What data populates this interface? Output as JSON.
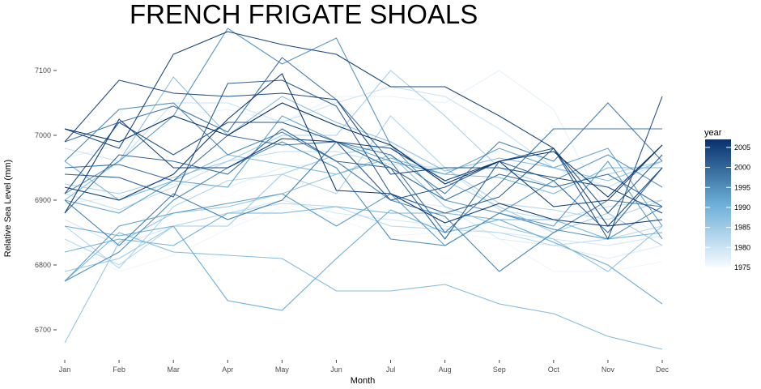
{
  "chart_data": {
    "type": "line",
    "title": "FRENCH FRIGATE SHOALS",
    "xlabel": "Month",
    "ylabel": "Relative Sea Level (mm)",
    "categories": [
      "Jan",
      "Feb",
      "Mar",
      "Apr",
      "May",
      "Jun",
      "Jul",
      "Aug",
      "Sep",
      "Oct",
      "Nov",
      "Dec"
    ],
    "yticks": [
      6700,
      6800,
      6900,
      7000,
      7100
    ],
    "ylim": [
      6665,
      7165
    ],
    "grid": false,
    "legend": {
      "title": "year",
      "position": "right",
      "labels": [
        1975,
        1980,
        1985,
        1990,
        1995,
        2000,
        2005
      ],
      "range": [
        1975,
        2007
      ],
      "color_low": "#f7fbff",
      "color_high": "#08306b"
    },
    "series": [
      {
        "year": 1975,
        "values": [
          6945,
          6870,
          6920,
          6905,
          6960,
          6935,
          6890,
          6880,
          6870,
          6845,
          6835,
          6815
        ]
      },
      {
        "year": 1976,
        "values": [
          6835,
          6790,
          6815,
          6855,
          6890,
          6870,
          6845,
          6850,
          6840,
          6790,
          6790,
          6805
        ]
      },
      {
        "year": 1977,
        "values": [
          6965,
          6985,
          7030,
          7040,
          7020,
          7060,
          7060,
          7050,
          7100,
          7040,
          6880,
          6850
        ]
      },
      {
        "year": 1978,
        "values": [
          6895,
          6905,
          6925,
          6920,
          6950,
          6960,
          6900,
          6890,
          6840,
          6830,
          6810,
          6830
        ]
      },
      {
        "year": 1979,
        "values": [
          6870,
          6830,
          6860,
          6880,
          6900,
          6880,
          6870,
          6860,
          6850,
          6840,
          6830,
          6845
        ]
      },
      {
        "year": 1980,
        "values": [
          6980,
          6960,
          7050,
          7050,
          7020,
          7050,
          7075,
          7060,
          7010,
          6950,
          6920,
          6960
        ]
      },
      {
        "year": 1981,
        "values": [
          6910,
          6885,
          6920,
          6960,
          6975,
          6975,
          6955,
          6950,
          6885,
          6870,
          6890,
          6900
        ]
      },
      {
        "year": 1982,
        "values": [
          6840,
          6800,
          6860,
          6880,
          6895,
          6890,
          6860,
          6855,
          6850,
          6830,
          6840,
          6860
        ]
      },
      {
        "year": 1983,
        "values": [
          6860,
          6795,
          6890,
          6930,
          6940,
          6910,
          7030,
          6950,
          6895,
          6885,
          6870,
          6900
        ]
      },
      {
        "year": 1984,
        "values": [
          6925,
          6910,
          6935,
          6960,
          7000,
          7000,
          7100,
          7030,
          6950,
          6920,
          6940,
          6960
        ]
      },
      {
        "year": 1985,
        "values": [
          6790,
          6810,
          6860,
          6860,
          6940,
          6970,
          6985,
          6930,
          6890,
          6850,
          6880,
          6830
        ]
      },
      {
        "year": 1986,
        "values": [
          6680,
          6835,
          6880,
          6890,
          6910,
          6940,
          6970,
          6890,
          6860,
          6840,
          6790,
          6860
        ]
      },
      {
        "year": 1987,
        "values": [
          6900,
          6960,
          7090,
          7000,
          7060,
          7020,
          6990,
          6945,
          6965,
          6950,
          6930,
          6960
        ]
      },
      {
        "year": 1988,
        "values": [
          6775,
          6850,
          6820,
          6815,
          6810,
          6760,
          6760,
          6770,
          6740,
          6725,
          6690,
          6670
        ]
      },
      {
        "year": 1989,
        "values": [
          6960,
          6900,
          6930,
          6970,
          6955,
          6940,
          6965,
          6940,
          6935,
          6910,
          6950,
          6950
        ]
      },
      {
        "year": 1990,
        "values": [
          6820,
          6840,
          6830,
          6880,
          6880,
          6890,
          6880,
          6880,
          6870,
          6870,
          6840,
          6850
        ]
      },
      {
        "year": 1991,
        "values": [
          6860,
          6845,
          6860,
          6745,
          6730,
          6810,
          6885,
          6850,
          6870,
          6835,
          6800,
          6740
        ]
      },
      {
        "year": 1992,
        "values": [
          6900,
          6880,
          6930,
          6920,
          7030,
          6990,
          6960,
          6940,
          6980,
          6950,
          6980,
          6860
        ]
      },
      {
        "year": 1993,
        "values": [
          6775,
          6860,
          6880,
          6895,
          6910,
          6860,
          6910,
          6830,
          6880,
          6860,
          6960,
          6840
        ]
      },
      {
        "year": 1994,
        "values": [
          6910,
          6960,
          7030,
          7165,
          7110,
          7150,
          6985,
          6900,
          6880,
          6930,
          6970,
          6920
        ]
      },
      {
        "year": 1995,
        "values": [
          6775,
          6820,
          6900,
          6950,
          6990,
          6950,
          6840,
          6830,
          6880,
          6855,
          6840,
          6890
        ]
      },
      {
        "year": 1996,
        "values": [
          6960,
          7040,
          7050,
          6970,
          7005,
          6960,
          6900,
          6875,
          6790,
          6850,
          6900,
          6890
        ]
      },
      {
        "year": 1997,
        "values": [
          6900,
          6830,
          6910,
          6870,
          6900,
          6990,
          6970,
          6910,
          6990,
          6960,
          7050,
          6960
        ]
      },
      {
        "year": 1998,
        "values": [
          6990,
          7020,
          7045,
          7005,
          7120,
          7055,
          6960,
          6850,
          6925,
          7010,
          7010,
          7010
        ]
      },
      {
        "year": 1999,
        "values": [
          6950,
          6955,
          6930,
          7000,
          6985,
          6990,
          6950,
          6900,
          6940,
          6920,
          6940,
          6890
        ]
      },
      {
        "year": 2000,
        "values": [
          6880,
          6970,
          6960,
          6940,
          7010,
          6960,
          6950,
          6840,
          6960,
          6930,
          6850,
          6950
        ]
      },
      {
        "year": 2001,
        "values": [
          6940,
          6935,
          6905,
          7080,
          7085,
          7045,
          6910,
          6880,
          6905,
          6980,
          6880,
          6970
        ]
      },
      {
        "year": 2002,
        "values": [
          6910,
          7020,
          6970,
          7020,
          7020,
          6990,
          6900,
          6920,
          6960,
          6980,
          6840,
          7060
        ]
      },
      {
        "year": 2003,
        "values": [
          6990,
          7085,
          7065,
          7060,
          7065,
          7055,
          6940,
          6950,
          6950,
          6935,
          6920,
          6880
        ]
      },
      {
        "year": 2004,
        "values": [
          7010,
          6980,
          7125,
          7160,
          7140,
          7125,
          7075,
          7075,
          7030,
          6980,
          6860,
          6950
        ]
      },
      {
        "year": 2005,
        "values": [
          6880,
          7025,
          6950,
          6950,
          6995,
          6990,
          6980,
          6930,
          6960,
          6890,
          6900,
          6985
        ]
      },
      {
        "year": 2006,
        "values": [
          6920,
          6900,
          6940,
          7025,
          7095,
          6915,
          6910,
          6865,
          6895,
          6870,
          6860,
          6870
        ]
      },
      {
        "year": 2007,
        "values": [
          7010,
          6990,
          7030,
          7000,
          7050,
          7015,
          6985,
          6925,
          6960,
          6975,
          6905,
          6985
        ]
      }
    ]
  }
}
